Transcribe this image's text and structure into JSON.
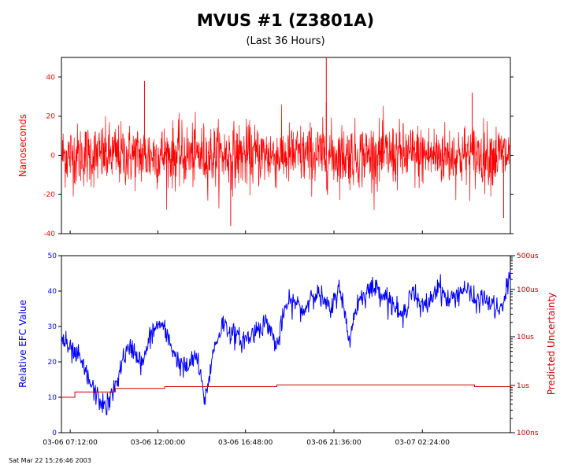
{
  "header": {
    "title": "MVUS  #1 (Z3801A)",
    "subtitle": "(Last 36 Hours)"
  },
  "footer": {
    "timestamp": "Sat Mar 22 15:26:46 2003"
  },
  "colors": {
    "phase": "#ff0000",
    "efc": "#0000ff",
    "uncertainty": "#cc0000",
    "axis": "#000000"
  },
  "chart_data": [
    {
      "type": "line",
      "ylabel": "Nanoseconds",
      "ylim": [
        -40,
        50
      ],
      "yticks": [
        "40",
        "20",
        "0",
        "-20",
        "-40"
      ],
      "grid": false,
      "series": [
        {
          "description_style": "dense noise around 0, amplitude about +/-20 ns",
          "typical_envelope": [
            -22,
            22
          ],
          "spikes": [
            {
              "x_frac": 0.377,
              "y": -36
            },
            {
              "x_frac": 0.59,
              "y": 50
            },
            {
              "x_frac": 0.59,
              "y": 27
            },
            {
              "x_frac": 0.185,
              "y": 38
            },
            {
              "x_frac": 0.985,
              "y": -32
            },
            {
              "x_frac": 0.915,
              "y": 32
            }
          ]
        }
      ]
    },
    {
      "type": "line",
      "ylabel": "Relative EFC Value",
      "y2label": "Predicted Uncertainty",
      "ylim": [
        0,
        50
      ],
      "yticks": [
        "50",
        "40",
        "30",
        "20",
        "10",
        "0"
      ],
      "y2ticks": [
        "500us",
        "100us",
        "10us",
        "1us",
        "100ns"
      ],
      "x_ticks": [
        "03-06 07:12:00",
        "03-06 12:00:00",
        "03-06 16:48:00",
        "03-06 21:36:00",
        "03-07 02:24:00"
      ],
      "grid": false,
      "series": [
        {
          "name": "",
          "color": "#0000ff",
          "x": [
            0.0,
            0.02,
            0.04,
            0.06,
            0.08,
            0.1,
            0.12,
            0.14,
            0.16,
            0.18,
            0.2,
            0.22,
            0.24,
            0.26,
            0.28,
            0.3,
            0.32,
            0.34,
            0.36,
            0.38,
            0.4,
            0.42,
            0.44,
            0.46,
            0.48,
            0.5,
            0.52,
            0.54,
            0.56,
            0.58,
            0.6,
            0.62,
            0.64,
            0.66,
            0.68,
            0.7,
            0.72,
            0.74,
            0.76,
            0.78,
            0.8,
            0.82,
            0.84,
            0.86,
            0.88,
            0.9,
            0.92,
            0.94,
            0.96,
            0.98,
            1.0
          ],
          "values": [
            27,
            23,
            21,
            15,
            10,
            7,
            13,
            22,
            24,
            19,
            28,
            31,
            26,
            20,
            18,
            22,
            9,
            24,
            31,
            28,
            26,
            27,
            30,
            31,
            24,
            36,
            37,
            34,
            40,
            38,
            34,
            42,
            26,
            37,
            40,
            41,
            39,
            36,
            32,
            41,
            35,
            37,
            42,
            37,
            39,
            41,
            37,
            38,
            36,
            34,
            45
          ]
        },
        {
          "name": "",
          "color": "#cc0000",
          "steps": [
            {
              "x": 0.0,
              "y": 10
            },
            {
              "x": 0.03,
              "y": 11.5
            },
            {
              "x": 0.12,
              "y": 12.5
            },
            {
              "x": 0.23,
              "y": 13
            },
            {
              "x": 0.48,
              "y": 13.5
            },
            {
              "x": 0.92,
              "y": 13
            },
            {
              "x": 1.0,
              "y": 13
            }
          ]
        }
      ]
    }
  ]
}
